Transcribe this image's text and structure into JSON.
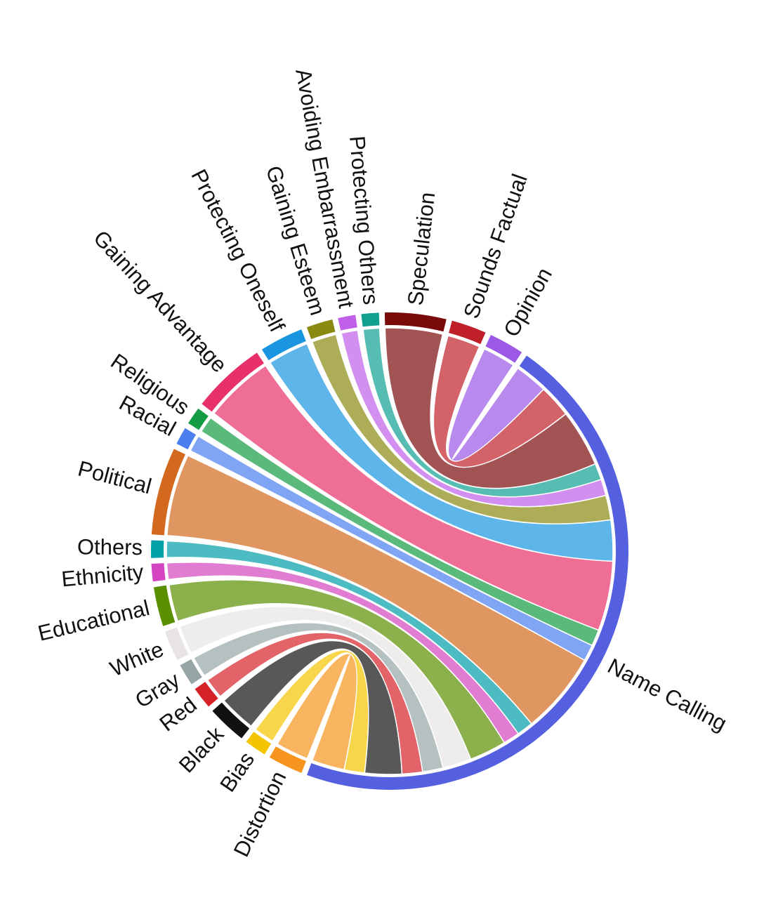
{
  "chart_data": {
    "type": "chord",
    "nodes": [
      {
        "name": "Name Calling",
        "color": "#5560e0"
      },
      {
        "name": "Distortion",
        "color": "#f7941d"
      },
      {
        "name": "Bias",
        "color": "#f5c400"
      },
      {
        "name": "Black",
        "color": "#111111"
      },
      {
        "name": "Red",
        "color": "#d62128"
      },
      {
        "name": "Gray",
        "color": "#95a5a6"
      },
      {
        "name": "White",
        "color": "#e8e4e4"
      },
      {
        "name": "Educational",
        "color": "#5a8f00"
      },
      {
        "name": "Ethnicity",
        "color": "#d444c0"
      },
      {
        "name": "Others",
        "color": "#00a0a8"
      },
      {
        "name": "Political",
        "color": "#d2691e"
      },
      {
        "name": "Racial",
        "color": "#4a7ff0"
      },
      {
        "name": "Religious",
        "color": "#149c45"
      },
      {
        "name": "Gaining Advantage",
        "color": "#e8306a"
      },
      {
        "name": "Protecting Oneself",
        "color": "#1a96e0"
      },
      {
        "name": "Gaining Esteem",
        "color": "#8a8a10"
      },
      {
        "name": "Avoiding Embarrassment",
        "color": "#c060e8"
      },
      {
        "name": "Protecting Others",
        "color": "#10a090"
      },
      {
        "name": "Speculation",
        "color": "#7a0a0a"
      },
      {
        "name": "Sounds Factual",
        "color": "#c0202a"
      },
      {
        "name": "Opinion",
        "color": "#9b59e6"
      }
    ],
    "links": [
      {
        "source": 1,
        "target": 0,
        "value": 8
      },
      {
        "source": 2,
        "target": 0,
        "value": 5
      },
      {
        "source": 3,
        "target": 0,
        "value": 9
      },
      {
        "source": 4,
        "target": 0,
        "value": 5
      },
      {
        "source": 5,
        "target": 0,
        "value": 5
      },
      {
        "source": 6,
        "target": 0,
        "value": 7
      },
      {
        "source": 7,
        "target": 0,
        "value": 9
      },
      {
        "source": 8,
        "target": 0,
        "value": 4
      },
      {
        "source": 9,
        "target": 0,
        "value": 4
      },
      {
        "source": 10,
        "target": 0,
        "value": 20
      },
      {
        "source": 11,
        "target": 0,
        "value": 4
      },
      {
        "source": 12,
        "target": 0,
        "value": 4
      },
      {
        "source": 13,
        "target": 0,
        "value": 17
      },
      {
        "source": 14,
        "target": 0,
        "value": 10
      },
      {
        "source": 15,
        "target": 0,
        "value": 6
      },
      {
        "source": 16,
        "target": 0,
        "value": 4
      },
      {
        "source": 17,
        "target": 0,
        "value": 4
      },
      {
        "source": 18,
        "target": 0,
        "value": 14
      },
      {
        "source": 19,
        "target": 0,
        "value": 8
      },
      {
        "source": 20,
        "target": 0,
        "value": 8
      }
    ]
  }
}
